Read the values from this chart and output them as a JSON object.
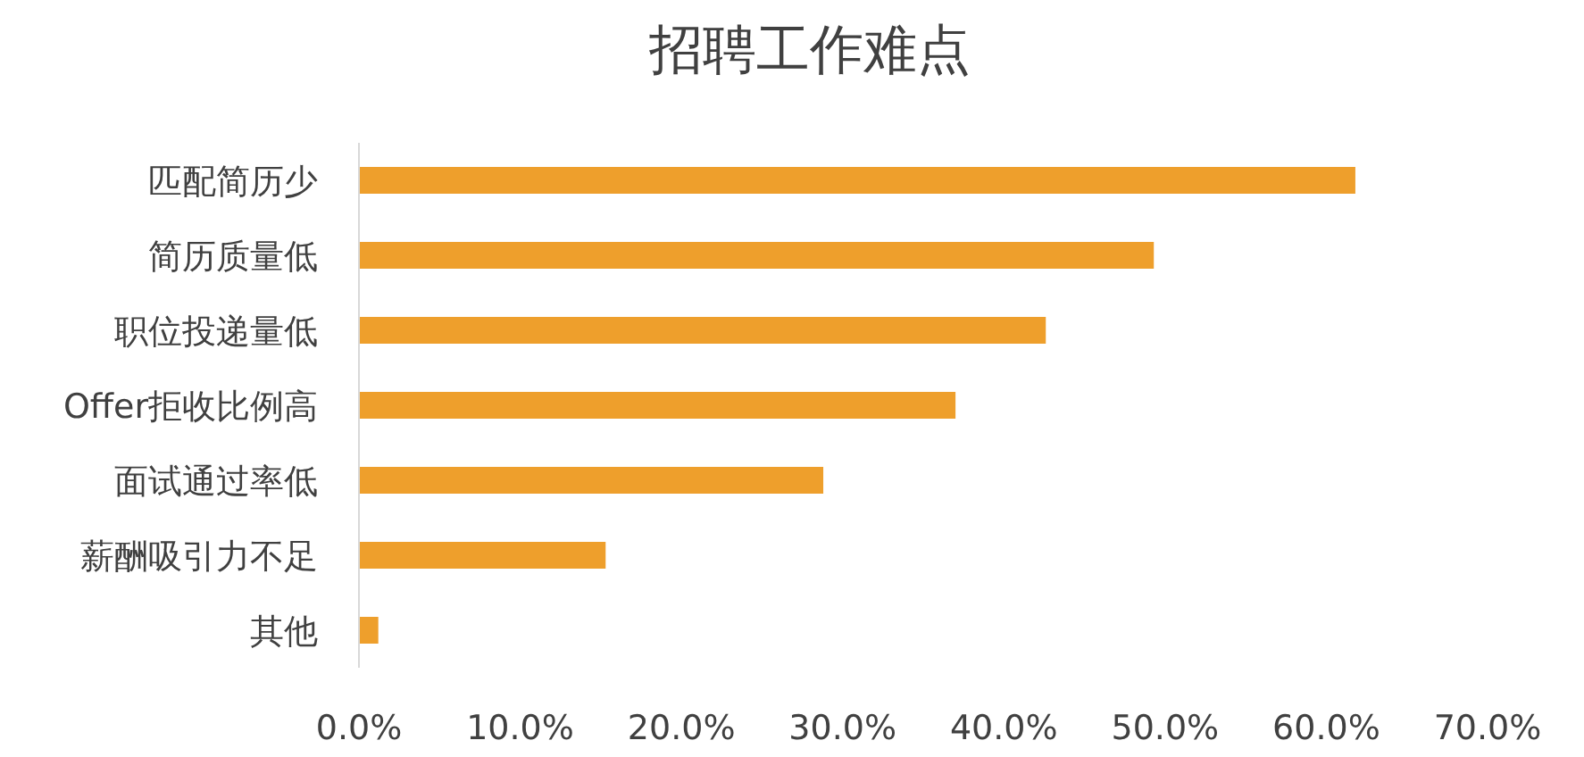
{
  "chart_data": {
    "type": "bar",
    "orientation": "horizontal",
    "title": "招聘工作难点",
    "categories": [
      "匹配简历少",
      "简历质量低",
      "职位投递量低",
      "Offer拒收比例高",
      "面试通过率低",
      "薪酬吸引力不足",
      "其他"
    ],
    "values": [
      61.8,
      49.3,
      42.6,
      37.0,
      28.8,
      15.3,
      1.2
    ],
    "color": "#ee9f2c",
    "xlim": [
      0,
      70
    ],
    "xticks": [
      {
        "value": 0,
        "label": "0.0%"
      },
      {
        "value": 10,
        "label": "10.0%"
      },
      {
        "value": 20,
        "label": "20.0%"
      },
      {
        "value": 30,
        "label": "30.0%"
      },
      {
        "value": 40,
        "label": "40.0%"
      },
      {
        "value": 50,
        "label": "50.0%"
      },
      {
        "value": 60,
        "label": "60.0%"
      },
      {
        "value": 70,
        "label": "70.0%"
      }
    ],
    "grid": false,
    "legend": false
  }
}
